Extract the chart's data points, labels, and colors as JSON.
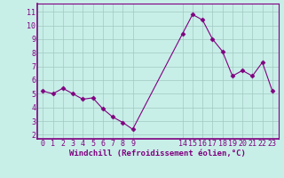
{
  "x": [
    0,
    1,
    2,
    3,
    4,
    5,
    6,
    7,
    8,
    9,
    14,
    15,
    16,
    17,
    18,
    19,
    20,
    21,
    22,
    23
  ],
  "y": [
    5.2,
    5.0,
    5.4,
    5.0,
    4.6,
    4.7,
    3.9,
    3.3,
    2.9,
    2.4,
    9.4,
    10.8,
    10.4,
    9.0,
    8.1,
    6.3,
    6.7,
    6.3,
    7.3,
    5.2
  ],
  "line_color": "#800080",
  "marker": "D",
  "marker_size": 2.5,
  "bg_color": "#c8eee8",
  "plot_bg_color": "#c8eee8",
  "grid_color": "#a0c8c0",
  "xlabel": "Windchill (Refroidissement éolien,°C)",
  "xlabel_color": "#800080",
  "tick_color": "#800080",
  "xticks": [
    0,
    1,
    2,
    3,
    4,
    5,
    6,
    7,
    8,
    9,
    14,
    15,
    16,
    17,
    18,
    19,
    20,
    21,
    22,
    23
  ],
  "yticks": [
    2,
    3,
    4,
    5,
    6,
    7,
    8,
    9,
    10,
    11
  ],
  "ylim": [
    1.7,
    11.6
  ],
  "xlim": [
    -0.6,
    23.6
  ],
  "spine_color": "#800080",
  "font_family": "monospace",
  "tick_fontsize": 6,
  "xlabel_fontsize": 6.5
}
